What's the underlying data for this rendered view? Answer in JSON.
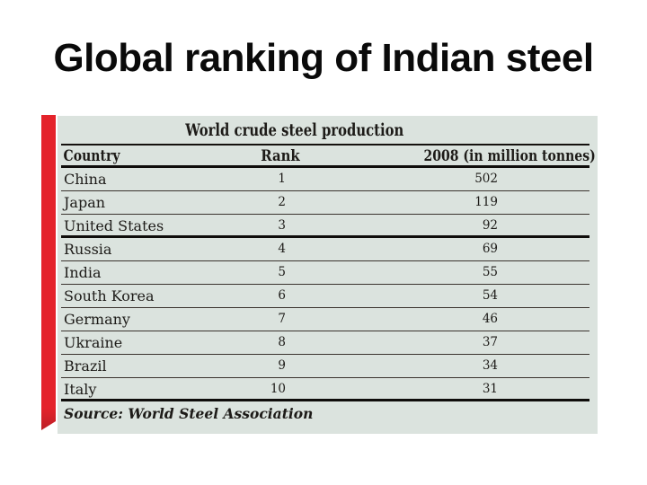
{
  "slide": {
    "title": "Global ranking of Indian steel"
  },
  "table": {
    "title": "World crude steel production",
    "columns": [
      "Country",
      "Rank",
      "2008 (in million tonnes)"
    ],
    "rows": [
      {
        "country": "China",
        "rank": "1",
        "value": "502"
      },
      {
        "country": "Japan",
        "rank": "2",
        "value": "119"
      },
      {
        "country": "United States",
        "rank": "3",
        "value": "92"
      },
      {
        "country": "Russia",
        "rank": "4",
        "value": "69"
      },
      {
        "country": "India",
        "rank": "5",
        "value": "55"
      },
      {
        "country": "South Korea",
        "rank": "6",
        "value": "54"
      },
      {
        "country": "Germany",
        "rank": "7",
        "value": "46"
      },
      {
        "country": "Ukraine",
        "rank": "8",
        "value": "37"
      },
      {
        "country": "Brazil",
        "rank": "9",
        "value": "34"
      },
      {
        "country": "Italy",
        "rank": "10",
        "value": "31"
      }
    ],
    "source": "Source: World Steel Association"
  },
  "colors": {
    "accent_red": "#e4232b",
    "panel_background": "#dbe3de",
    "thin_rule": "#3a332e",
    "thick_rule": "#0f0d0b",
    "text": "#1d1b18"
  }
}
